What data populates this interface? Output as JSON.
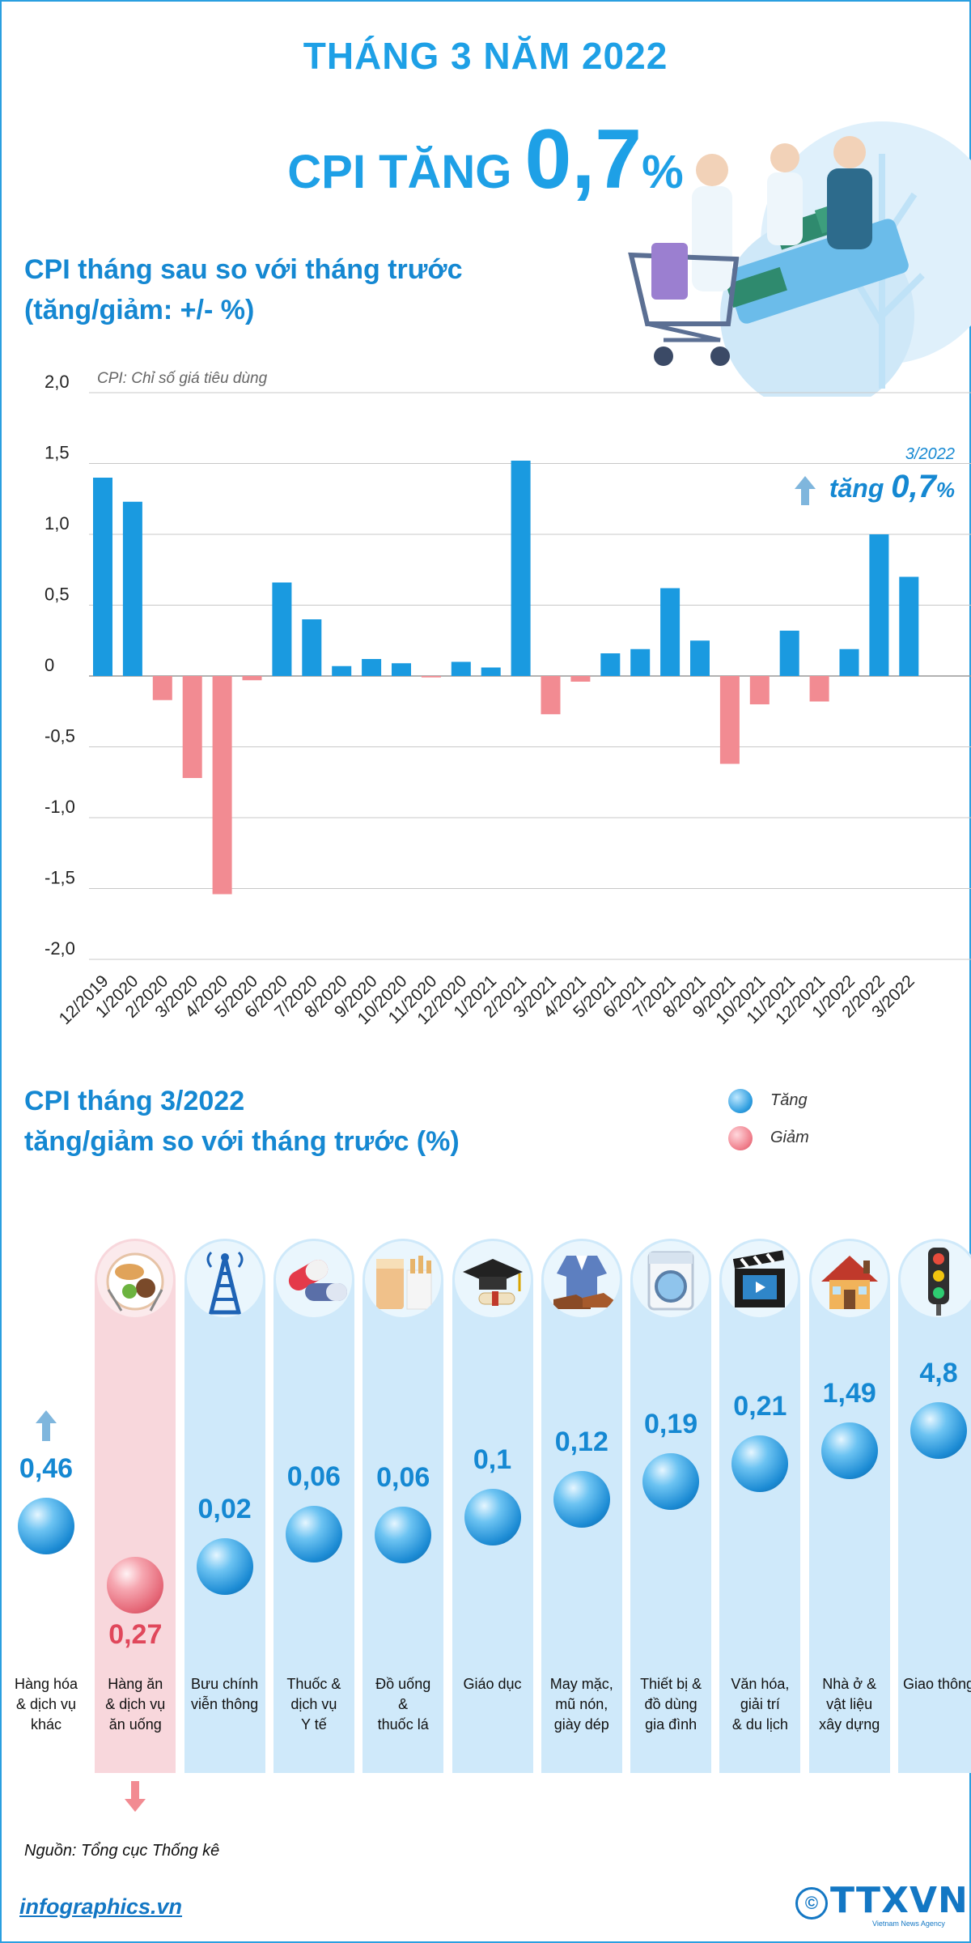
{
  "header": {
    "title": "THÁNG 3 NĂM 2022",
    "cpi_prefix": "CPI TĂNG ",
    "cpi_value": "0,7",
    "cpi_unit": "%"
  },
  "section1": {
    "title_line1": "CPI tháng sau so với tháng trước",
    "title_line2": "(tăng/giảm: +/- %)"
  },
  "callout": {
    "period": "3/2022",
    "text": "tăng ",
    "value": "0,7",
    "unit": "%"
  },
  "chart_data": {
    "type": "bar",
    "note": "CPI: Chỉ số giá tiêu dùng",
    "ylim": [
      -2.0,
      2.0
    ],
    "ytick_labels": [
      "2,0",
      "1,5",
      "1,0",
      "0,5",
      "0",
      "-0,5",
      "-1,0",
      "-1,5",
      "-2,0"
    ],
    "grid": true,
    "categories": [
      "12/2019",
      "1/2020",
      "2/2020",
      "3/2020",
      "4/2020",
      "5/2020",
      "6/2020",
      "7/2020",
      "8/2020",
      "9/2020",
      "10/2020",
      "11/2020",
      "12/2020",
      "1/2021",
      "2/2021",
      "3/2021",
      "4/2021",
      "5/2021",
      "6/2021",
      "7/2021",
      "8/2021",
      "9/2021",
      "10/2021",
      "11/2021",
      "12/2021",
      "1/2022",
      "2/2022",
      "3/2022"
    ],
    "values": [
      1.4,
      1.23,
      -0.17,
      -0.72,
      -1.54,
      -0.03,
      0.66,
      0.4,
      0.07,
      0.12,
      0.09,
      -0.01,
      0.1,
      0.06,
      1.52,
      -0.27,
      -0.04,
      0.16,
      0.19,
      0.62,
      0.25,
      -0.62,
      -0.2,
      0.32,
      -0.18,
      0.19,
      1.0,
      0.7
    ],
    "colors": {
      "positive": "#1a9ae0",
      "negative": "#f28b92"
    }
  },
  "section2": {
    "title_line1": "CPI tháng 3/2022",
    "title_line2": "tăng/giảm so với tháng trước (%)"
  },
  "legend": [
    {
      "label": "Tăng",
      "kind": "up"
    },
    {
      "label": "Giảm",
      "kind": "down"
    }
  ],
  "groups": [
    {
      "value": "0,46",
      "num": 0.46,
      "label": "Hàng hóa\n& dịch vụ\nkhác",
      "direction": "up",
      "icon": ""
    },
    {
      "value": "0,27",
      "num": -0.27,
      "label": "Hàng ăn\n& dịch vụ\năn uống",
      "direction": "down",
      "icon": "food-icon"
    },
    {
      "value": "0,02",
      "num": 0.02,
      "label": "Bưu chính\nviễn thông",
      "direction": "up",
      "icon": "antenna-tower-icon"
    },
    {
      "value": "0,06",
      "num": 0.06,
      "label": "Thuốc &\ndịch vụ\nY tế",
      "direction": "up",
      "icon": "medicine-capsule-icon"
    },
    {
      "value": "0,06",
      "num": 0.06,
      "label": "Đồ uống\n&\nthuốc lá",
      "direction": "up",
      "icon": "drink-cigarette-icon"
    },
    {
      "value": "0,1",
      "num": 0.1,
      "label": "Giáo dục",
      "direction": "up",
      "icon": "graduation-cap-icon"
    },
    {
      "value": "0,12",
      "num": 0.12,
      "label": "May mặc,\nmũ nón,\ngiày dép",
      "direction": "up",
      "icon": "clothing-shoes-icon"
    },
    {
      "value": "0,19",
      "num": 0.19,
      "label": "Thiết bị &\nđồ dùng\ngia đình",
      "direction": "up",
      "icon": "washing-machine-icon"
    },
    {
      "value": "0,21",
      "num": 0.21,
      "label": "Văn hóa,\ngiải trí\n& du lịch",
      "direction": "up",
      "icon": "clapperboard-icon"
    },
    {
      "value": "1,49",
      "num": 1.49,
      "label": "Nhà ở &\nvật liệu\nxây dựng",
      "direction": "up",
      "icon": "house-icon"
    },
    {
      "value": "4,8",
      "num": 4.8,
      "label": "Giao thông",
      "direction": "up",
      "icon": "traffic-light-icon"
    }
  ],
  "footer": {
    "source": "Nguồn: Tổng cục Thống kê",
    "site": "infographics.vn",
    "brand": "TTXVN",
    "brand_sub": "Vietnam News Agency"
  }
}
